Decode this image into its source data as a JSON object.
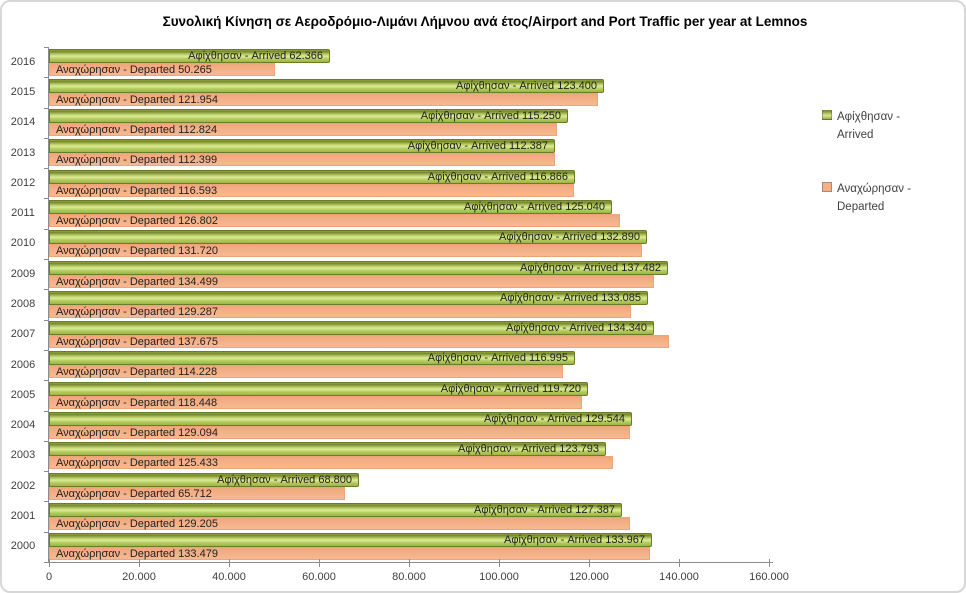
{
  "title": "Συνολική Κίνηση σε Αεροδρόμιο-Λιμάνι Λήμνου ανά έτος/Airport and Port Traffic per year at Lemnos",
  "legend": {
    "items": [
      {
        "label": "Αφίχθησαν - Arrived",
        "color": "#9cb648"
      },
      {
        "label": "Αναχώρησαν - Departed",
        "color": "#f4b088"
      }
    ]
  },
  "colors": {
    "arrived_bar": "#9cb648",
    "arrived_bar_highlight": "#dcea96",
    "arrived_bar_border": "#6b7c29",
    "departed_bar": "#f4b088",
    "axis_line": "#8c8c8c",
    "text": "#3f3f3f"
  },
  "chart_data": {
    "type": "bar",
    "orientation": "horizontal",
    "title": "Συνολική Κίνηση σε Αεροδρόμιο-Λιμάνι Λήμνου ανά έτος/Airport and Port Traffic per year at Lemnos",
    "categories": [
      "2016",
      "2015",
      "2014",
      "2013",
      "2012",
      "2011",
      "2010",
      "2009",
      "2008",
      "2007",
      "2006",
      "2005",
      "2004",
      "2003",
      "2002",
      "2001",
      "2000"
    ],
    "series": [
      {
        "name": "Αφίχθησαν - Arrived",
        "values": [
          62366,
          123400,
          115250,
          112387,
          116866,
          125040,
          132890,
          137482,
          133085,
          134340,
          116995,
          119720,
          129544,
          123793,
          68800,
          127387,
          133967
        ]
      },
      {
        "name": "Αναχώρησαν - Departed",
        "values": [
          50265,
          121954,
          112824,
          112399,
          116593,
          126802,
          131720,
          134499,
          129287,
          137675,
          114228,
          118448,
          129094,
          125433,
          65712,
          129205,
          133479
        ]
      }
    ],
    "xlim": [
      0,
      160000
    ],
    "x_tick_step": 20000,
    "x_tick_labels": [
      "0",
      "20.000",
      "40.000",
      "60.000",
      "80.000",
      "100.000",
      "120.000",
      "140.000",
      "160.000"
    ],
    "grid": false,
    "legend_position": "right",
    "bar_label_format": "{series} {value}",
    "thousands_separator": "."
  }
}
